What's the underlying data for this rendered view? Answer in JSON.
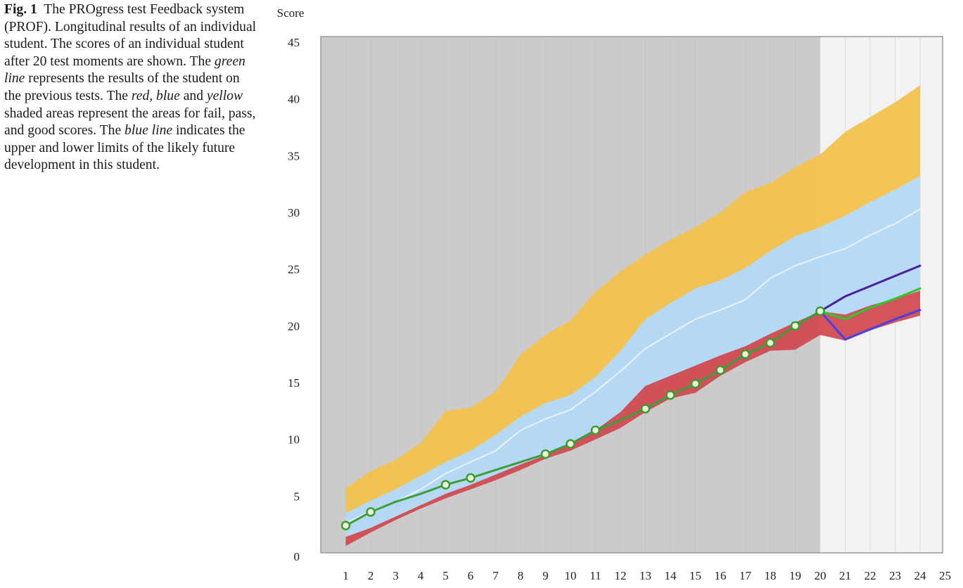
{
  "caption": {
    "label": "Fig. 1",
    "p1": "The PROgress test Feedback system (PROF). Longitudinal results of an individual student. The scores of an individual student after 20 test moments are shown. The ",
    "i1": "green line",
    "p2": " represents the results of the student on the previous tests. The ",
    "i2": "red, blue",
    "p3": " and ",
    "i3": "yellow",
    "p4": " shaded areas represent the areas for fail, pass, and good scores. The ",
    "i4": "blue line",
    "p5": " indicates the upper and lower limits of the likely future development in this student."
  },
  "chart_data": {
    "type": "area",
    "ylabel": "Score",
    "xlabel": "",
    "xlim": [
      0,
      25
    ],
    "ylim": [
      0,
      45
    ],
    "yticks": [
      0,
      5,
      10,
      15,
      20,
      25,
      30,
      35,
      40,
      45
    ],
    "xticks": [
      1,
      2,
      3,
      4,
      5,
      6,
      7,
      8,
      9,
      10,
      11,
      12,
      13,
      14,
      15,
      16,
      17,
      18,
      19,
      20,
      21,
      22,
      23,
      24,
      25
    ],
    "past_region_end": 20,
    "colors": {
      "plot_bg_past": "#cbcbcb",
      "plot_bg_future": "#f2f2f2",
      "fail": "#d0484e",
      "pass": "#b3d9f5",
      "good": "#f2c24e",
      "student": "#3a9e3a",
      "mean": "#eef4fa",
      "upper_limit": "#4b1f9e",
      "lower_limit": "#4a3fe0"
    },
    "bands": {
      "x": [
        1,
        2,
        3,
        4,
        5,
        6,
        7,
        8,
        9,
        10,
        11,
        12,
        13,
        14,
        15,
        16,
        17,
        18,
        19,
        20,
        21,
        22,
        23,
        24
      ],
      "fail_low": [
        0.6,
        1.8,
        2.9,
        3.9,
        4.8,
        5.6,
        6.4,
        7.3,
        8.3,
        9.0,
        10.0,
        11.0,
        12.4,
        13.6,
        14.1,
        15.6,
        16.8,
        17.8,
        17.9,
        19.2,
        18.7,
        19.6,
        20.3,
        20.9
      ],
      "fail_high": [
        1.4,
        2.2,
        3.2,
        4.2,
        5.2,
        6.0,
        6.9,
        7.8,
        8.6,
        9.6,
        10.8,
        12.4,
        14.7,
        15.6,
        16.5,
        17.4,
        18.2,
        19.3,
        20.3,
        21.3,
        21.0,
        21.8,
        22.4,
        23.1
      ],
      "pass_high": [
        3.5,
        4.6,
        5.6,
        6.8,
        8.0,
        9.0,
        10.4,
        12.0,
        13.2,
        13.9,
        15.5,
        17.8,
        20.6,
        22.0,
        23.3,
        24.0,
        25.1,
        26.6,
        27.9,
        28.7,
        29.7,
        30.9,
        32.0,
        33.2
      ],
      "good_high": [
        5.7,
        7.2,
        8.2,
        9.7,
        12.5,
        12.8,
        14.2,
        17.5,
        19.2,
        20.5,
        23.0,
        24.8,
        26.3,
        27.6,
        28.7,
        30.0,
        31.8,
        32.6,
        34.0,
        35.1,
        37.1,
        38.4,
        39.7,
        41.2
      ],
      "mean": [
        2.6,
        3.7,
        4.5,
        5.6,
        7.0,
        8.0,
        9.0,
        10.8,
        11.8,
        12.6,
        14.2,
        16.0,
        18.0,
        19.3,
        20.6,
        21.4,
        22.3,
        24.2,
        25.3,
        26.1,
        26.8,
        28.0,
        29.0,
        30.3
      ]
    },
    "series": [
      {
        "name": "student",
        "x": [
          1,
          2,
          3,
          4,
          5,
          6,
          7,
          8,
          9,
          10,
          11,
          12,
          13,
          14,
          15,
          16,
          17,
          18,
          19,
          20
        ],
        "values": [
          2.4,
          3.6,
          4.5,
          5.2,
          6.0,
          6.6,
          7.3,
          8.0,
          8.7,
          9.6,
          10.8,
          11.7,
          12.7,
          13.9,
          14.9,
          16.1,
          17.5,
          18.5,
          20.0,
          21.3
        ],
        "markers": [
          1,
          2,
          5,
          6,
          9,
          10,
          11,
          13,
          14,
          15,
          16,
          17,
          18,
          19,
          20
        ]
      },
      {
        "name": "student-projection",
        "x": [
          20,
          21,
          22,
          23,
          24
        ],
        "values": [
          21.3,
          20.6,
          21.6,
          22.4,
          23.3
        ]
      },
      {
        "name": "upper-limit",
        "x": [
          20,
          21,
          22,
          23,
          24
        ],
        "values": [
          21.3,
          22.6,
          23.5,
          24.4,
          25.3
        ]
      },
      {
        "name": "lower-limit",
        "x": [
          20,
          21,
          22,
          23,
          24
        ],
        "values": [
          21.3,
          18.8,
          19.7,
          20.6,
          21.4
        ]
      }
    ]
  }
}
